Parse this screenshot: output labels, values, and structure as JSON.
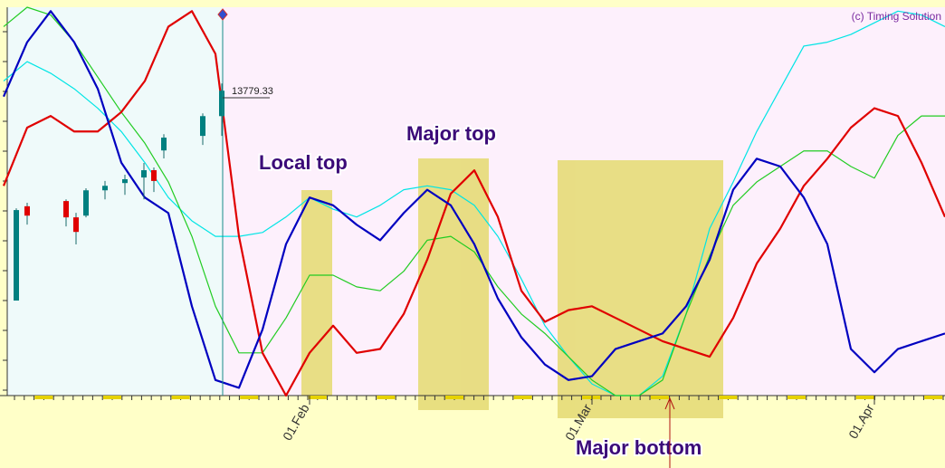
{
  "chart_data": {
    "type": "line",
    "copyright": "(c) Timing Solution",
    "annotations": [
      "Local top",
      "Major top",
      "Major bottom"
    ],
    "categories": [
      null,
      null,
      null,
      null,
      null,
      null,
      null,
      null,
      null,
      null,
      null,
      null,
      null,
      "01.Feb",
      null,
      null,
      null,
      null,
      null,
      null,
      null,
      null,
      null,
      null,
      null,
      "01.Mar",
      null,
      null,
      null,
      null,
      null,
      null,
      null,
      null,
      null,
      null,
      null,
      "01.Apr",
      null,
      null,
      null
    ],
    "ylim": [
      0,
      100
    ],
    "series": [
      {
        "color": "#00e5e5",
        "values": [
          81,
          86,
          83,
          79,
          74,
          68,
          60,
          51,
          45,
          41,
          41,
          42,
          46,
          51,
          48,
          46,
          49,
          53,
          54,
          53,
          49,
          41,
          30,
          18,
          10,
          3,
          0,
          0,
          5,
          21,
          43,
          55,
          68,
          79,
          90,
          91,
          93,
          96,
          99,
          98,
          95
        ]
      },
      {
        "color": "#22cc22",
        "values": [
          95,
          100,
          98,
          91,
          82,
          73,
          65,
          55,
          41,
          23,
          11,
          11,
          20,
          31,
          31,
          28,
          27,
          32,
          40,
          41,
          37,
          28,
          21,
          16,
          10,
          4,
          0,
          0,
          4,
          21,
          36,
          49,
          55,
          59,
          63,
          63,
          59,
          56,
          67,
          72,
          72
        ]
      },
      {
        "color": "#e00000",
        "values": [
          54,
          69,
          72,
          68,
          68,
          73,
          81,
          95,
          99,
          88,
          41,
          11,
          0,
          11,
          18,
          11,
          12,
          21,
          35,
          52,
          58,
          46,
          27,
          19,
          22,
          23,
          20,
          17,
          14,
          12,
          10,
          20,
          34,
          43,
          54,
          61,
          69,
          74,
          72,
          60,
          46
        ]
      },
      {
        "color": "#0000c0",
        "values": [
          77,
          91,
          99,
          91,
          79,
          60,
          51,
          47,
          23,
          4,
          2,
          17,
          39,
          51,
          49,
          44,
          40,
          47,
          53,
          49,
          39,
          25,
          15,
          8,
          4,
          5,
          12,
          14,
          16,
          23,
          35,
          53,
          61,
          59,
          51,
          39,
          12,
          6,
          12,
          14,
          16
        ]
      }
    ],
    "y2lim": [
      12900,
      14020
    ],
    "candles": {
      "up_color": "#008080",
      "down_color": "#e00000",
      "open": [
        13174,
        13446,
        13461,
        13414,
        13419,
        13492,
        13513,
        13529,
        13550,
        13607,
        13649,
        13706
      ],
      "high": [
        13440,
        13456,
        13466,
        13427,
        13498,
        13519,
        13537,
        13571,
        13558,
        13654,
        13714,
        13800
      ],
      "low": [
        13174,
        13393,
        13388,
        13336,
        13414,
        13466,
        13479,
        13466,
        13487,
        13584,
        13623,
        13649
      ],
      "close": [
        13435,
        13419,
        13414,
        13372,
        13492,
        13505,
        13524,
        13550,
        13519,
        13644,
        13706,
        13779.33
      ]
    }
  }
}
